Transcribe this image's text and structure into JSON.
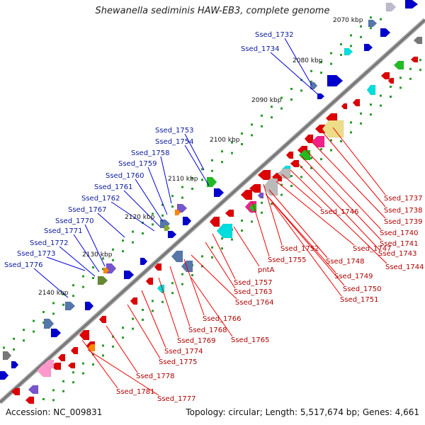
{
  "title": "Shewanella sediminis HAW-EB3, complete genome",
  "footer": {
    "accession": "Accession: NC_009831",
    "summary": "Topology: circular; Length: 5,517,674 bp; Genes: 4,661"
  },
  "kbp_labels": [
    "2070 kbp",
    "2080 kbp",
    "2090 kbp",
    "2100 kbp",
    "2110 kbp",
    "2120 kbp",
    "2130 kbp",
    "2140 kbp"
  ],
  "left_labels": [
    "Ssed_1732",
    "Ssed_1734",
    "Ssed_1753",
    "Ssed_1754",
    "Ssed_1758",
    "Ssed_1759",
    "Ssed_1760",
    "Ssed_1761",
    "Ssed_1762",
    "Ssed_1767",
    "Ssed_1770",
    "Ssed_1771",
    "Ssed_1772",
    "Ssed_1773",
    "Ssed_1776"
  ],
  "right_labels": [
    "Ssed_1737",
    "Ssed_1738",
    "Ssed_1739",
    "Ssed_1740",
    "Ssed_1741",
    "Ssed_1743",
    "Ssed_1744",
    "Ssed_1746",
    "Ssed_1747",
    "Ssed_1752",
    "Ssed_1748",
    "Ssed_1755",
    "Ssed_1749",
    "Ssed_1750",
    "Ssed_1751",
    "pntA",
    "Ssed_1757",
    "Ssed_1763",
    "Ssed_1764",
    "Ssed_1766",
    "Ssed_1768",
    "Ssed_1765",
    "Ssed_1769",
    "Ssed_1774",
    "Ssed_1775",
    "Ssed_1778",
    "Ssed_1781",
    "Ssed_1777"
  ],
  "colors": {
    "backbone": "#8a8a8a",
    "left_label": "#0b1a9c",
    "right_label": "#b00000",
    "tick_dot": "#1a8a1a"
  }
}
